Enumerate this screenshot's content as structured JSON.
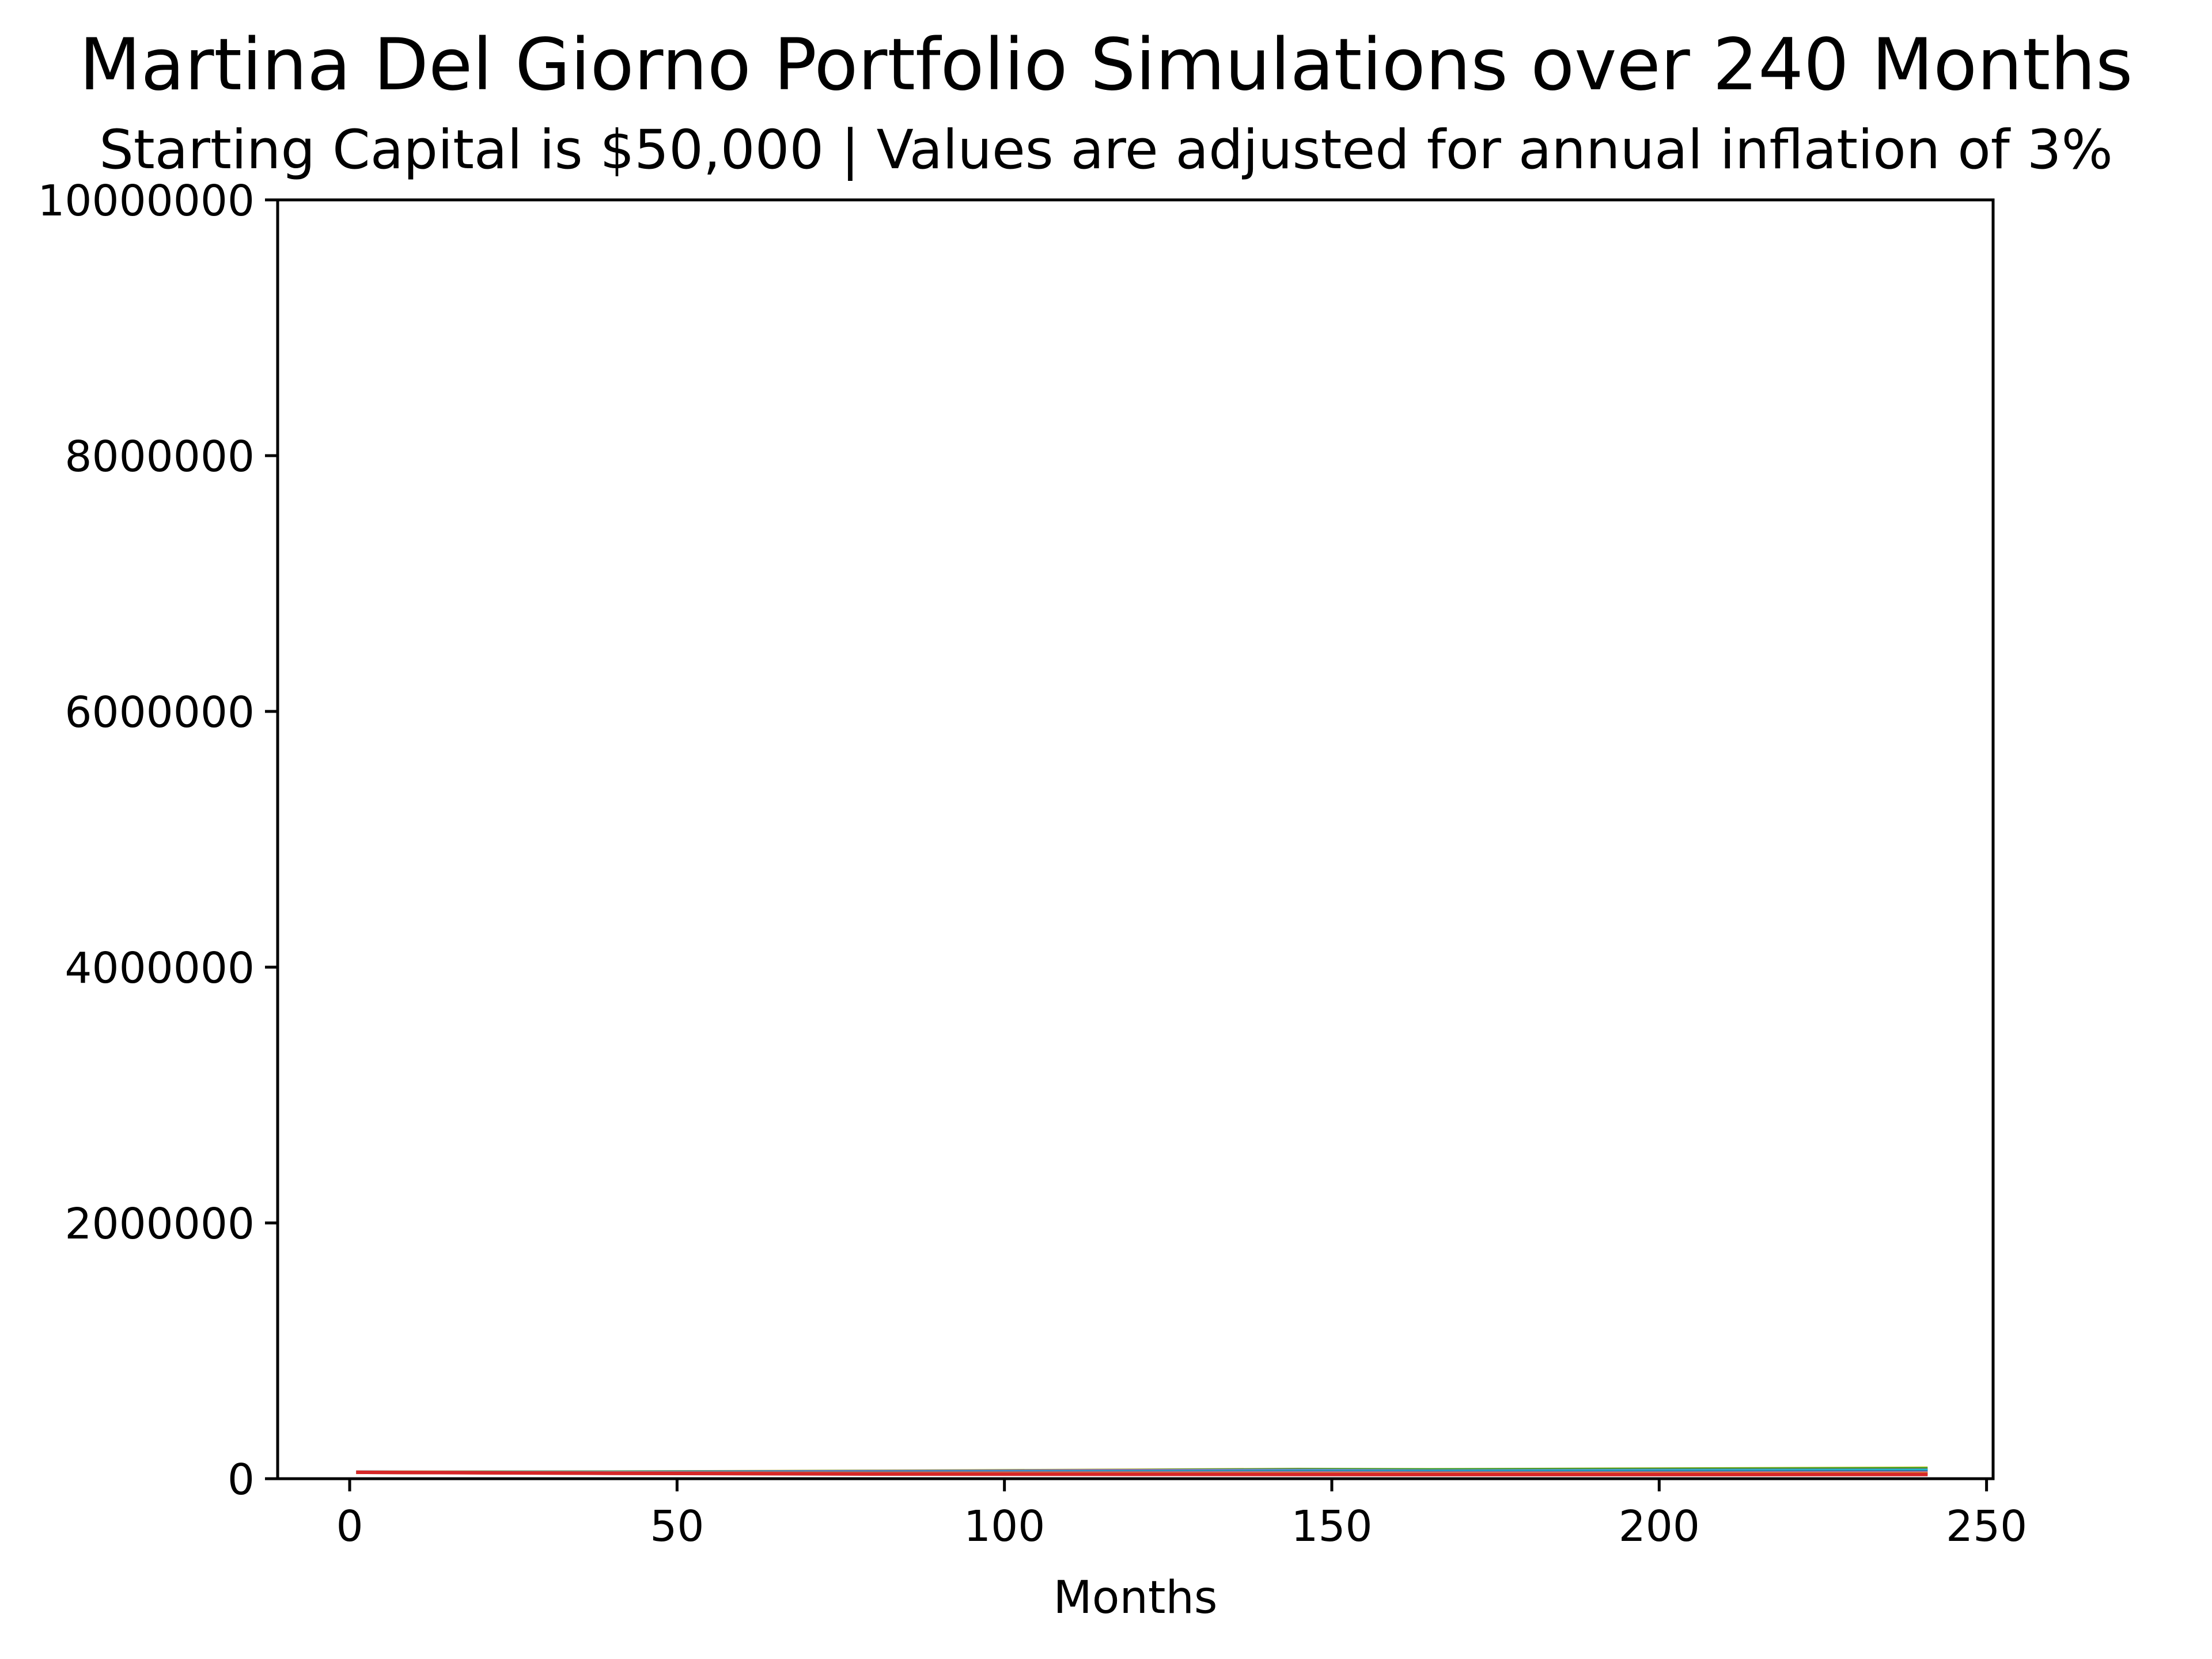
{
  "chart_data": {
    "type": "line",
    "title": "Martina Del Giorno Portfolio Simulations over 240 Months",
    "subtitle": "Starting Capital is $50,000 | Values are adjusted for annual inflation of 3%",
    "xlabel": "Months",
    "ylabel": "",
    "xlim": [
      -11,
      251
    ],
    "ylim": [
      0,
      10000000
    ],
    "x_ticks": [
      0,
      50,
      100,
      150,
      200,
      250
    ],
    "x_tick_labels": [
      "0",
      "50",
      "100",
      "150",
      "200",
      "250"
    ],
    "y_ticks": [
      0,
      2000000,
      4000000,
      6000000,
      8000000,
      10000000
    ],
    "y_tick_labels": [
      "0",
      "2000000",
      "4000000",
      "6000000",
      "8000000",
      "10000000"
    ],
    "grid": false,
    "legend": "none",
    "series": [
      {
        "color": "#bcbd22",
        "x": [
          1,
          40,
          80,
          120,
          145,
          165,
          200,
          241
        ],
        "y": [
          50000,
          52000,
          58000,
          66000,
          72000,
          70000,
          75000,
          82000
        ]
      },
      {
        "color": "#2ca02c",
        "x": [
          1,
          40,
          80,
          120,
          145,
          165,
          200,
          241
        ],
        "y": [
          50000,
          51000,
          56000,
          63000,
          70000,
          68000,
          72000,
          76000
        ]
      },
      {
        "color": "#9467bd",
        "x": [
          1,
          40,
          80,
          120,
          145,
          165,
          200,
          241
        ],
        "y": [
          50000,
          49000,
          55000,
          62000,
          64000,
          60000,
          64000,
          66000
        ]
      },
      {
        "color": "#17becf",
        "x": [
          1,
          40,
          80,
          120,
          145,
          165,
          200,
          241
        ],
        "y": [
          50000,
          48000,
          50000,
          54000,
          58000,
          56000,
          60000,
          63000
        ]
      },
      {
        "color": "#1f77b4",
        "x": [
          1,
          40,
          80,
          120,
          145,
          165,
          200,
          241
        ],
        "y": [
          50000,
          47000,
          48000,
          50000,
          52000,
          50000,
          52000,
          54000
        ]
      },
      {
        "color": "#8c564b",
        "x": [
          1,
          40,
          80,
          120,
          145,
          165,
          200,
          241
        ],
        "y": [
          50000,
          46000,
          44000,
          46000,
          47000,
          45000,
          46000,
          47000
        ]
      },
      {
        "color": "#e377c2",
        "x": [
          1,
          40,
          80,
          120,
          145,
          165,
          200,
          241
        ],
        "y": [
          50000,
          45000,
          42000,
          43000,
          44000,
          42000,
          43000,
          44000
        ]
      },
      {
        "color": "#7f7f7f",
        "x": [
          1,
          40,
          80,
          120,
          145,
          165,
          200,
          241
        ],
        "y": [
          50000,
          44000,
          40000,
          40000,
          40000,
          38000,
          39000,
          40000
        ]
      },
      {
        "color": "#ff7f0e",
        "x": [
          1,
          40,
          80,
          120,
          145,
          165,
          200,
          241
        ],
        "y": [
          50000,
          43000,
          38000,
          37000,
          36000,
          35000,
          36000,
          37000
        ]
      },
      {
        "color": "#d62728",
        "x": [
          1,
          40,
          80,
          120,
          145,
          165,
          200,
          241
        ],
        "y": [
          50000,
          42000,
          36000,
          34000,
          33000,
          32000,
          32000,
          33000
        ]
      }
    ]
  }
}
